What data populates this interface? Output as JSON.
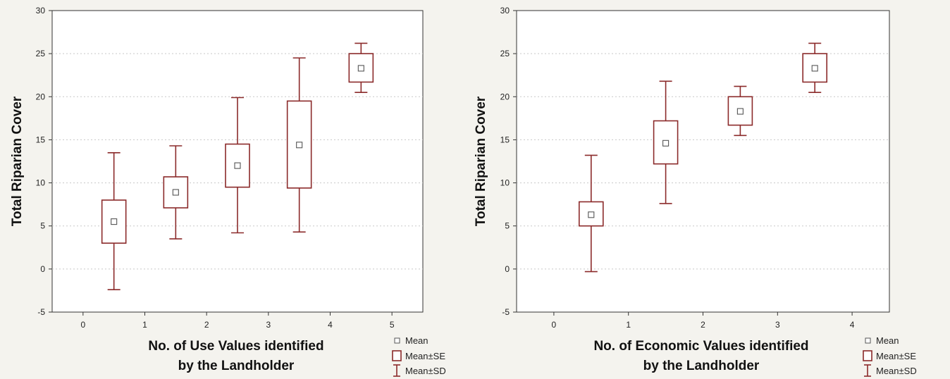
{
  "chart_data": [
    {
      "type": "box",
      "title": "",
      "xlabel": [
        "No. of Use Values identified",
        "by the Landholder"
      ],
      "ylabel": "Total Riparian Cover",
      "xlim": [
        -0.5,
        5.5
      ],
      "ylim": [
        -5,
        30
      ],
      "x_ticks": [
        "0",
        "1",
        "2",
        "3",
        "4",
        "5"
      ],
      "y_ticks": [
        "-5",
        "0",
        "5",
        "10",
        "15",
        "20",
        "25",
        "30"
      ],
      "grid": "horizontal dotted",
      "legend_position": "bottom-right",
      "legend": [
        "Mean",
        "Mean±SE",
        "Mean±SD"
      ],
      "groups": [
        {
          "x": 0.5,
          "mean": 5.5,
          "se_low": 3.0,
          "se_high": 8.0,
          "sd_low": -2.4,
          "sd_high": 13.5
        },
        {
          "x": 1.5,
          "mean": 8.9,
          "se_low": 7.1,
          "se_high": 10.7,
          "sd_low": 3.5,
          "sd_high": 14.3
        },
        {
          "x": 2.5,
          "mean": 12.0,
          "se_low": 9.5,
          "se_high": 14.5,
          "sd_low": 4.2,
          "sd_high": 19.9
        },
        {
          "x": 3.5,
          "mean": 14.4,
          "se_low": 9.4,
          "se_high": 19.5,
          "sd_low": 4.3,
          "sd_high": 24.5
        },
        {
          "x": 4.5,
          "mean": 23.3,
          "se_low": 21.7,
          "se_high": 25.0,
          "sd_low": 20.5,
          "sd_high": 26.2
        }
      ]
    },
    {
      "type": "box",
      "title": "",
      "xlabel": [
        "No. of Economic Values identified",
        "by the Landholder"
      ],
      "ylabel": "Total Riparian Cover",
      "xlim": [
        -0.5,
        4.5
      ],
      "ylim": [
        -5,
        30
      ],
      "x_ticks": [
        "0",
        "1",
        "2",
        "3",
        "4"
      ],
      "y_ticks": [
        "-5",
        "0",
        "5",
        "10",
        "15",
        "20",
        "25",
        "30"
      ],
      "grid": "horizontal dotted",
      "legend_position": "bottom-right",
      "legend": [
        "Mean",
        "Mean±SE",
        "Mean±SD"
      ],
      "groups": [
        {
          "x": 0.5,
          "mean": 6.3,
          "se_low": 5.0,
          "se_high": 7.8,
          "sd_low": -0.3,
          "sd_high": 13.2
        },
        {
          "x": 1.5,
          "mean": 14.6,
          "se_low": 12.2,
          "se_high": 17.2,
          "sd_low": 7.6,
          "sd_high": 21.8
        },
        {
          "x": 2.5,
          "mean": 18.3,
          "se_low": 16.7,
          "se_high": 20.0,
          "sd_low": 15.5,
          "sd_high": 21.2
        },
        {
          "x": 3.5,
          "mean": 23.3,
          "se_low": 21.7,
          "se_high": 25.0,
          "sd_low": 20.5,
          "sd_high": 26.2
        }
      ]
    }
  ],
  "colors": {
    "box": "#8b2a2a",
    "mean_marker": "#555555",
    "grid": "#c8c8c8",
    "plot_bg": "#ffffff",
    "page_bg": "#f4f3ee"
  }
}
